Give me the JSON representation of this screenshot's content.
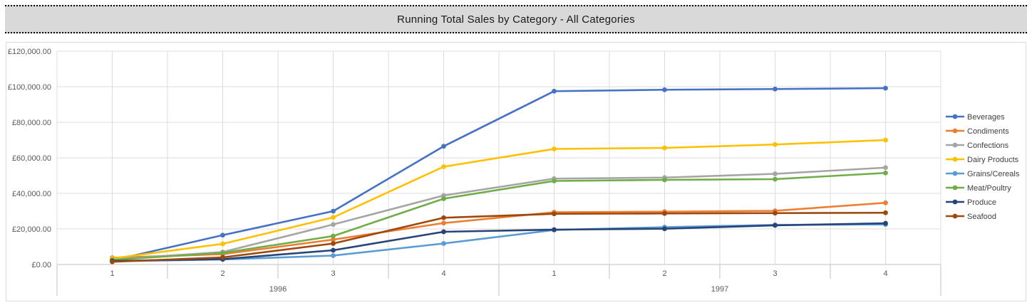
{
  "title_bar": {
    "title": "Running Total Sales by Category - All Categories"
  },
  "chart_data": {
    "type": "line",
    "title": "Running Total Sales by Category - All Categories",
    "currency": "GBP",
    "x_axis": {
      "quarter_labels": [
        "1",
        "2",
        "3",
        "4",
        "1",
        "2",
        "3",
        "4"
      ],
      "year_groups": [
        {
          "label": "1996",
          "quarters": 4
        },
        {
          "label": "1997",
          "quarters": 4
        }
      ]
    },
    "y_axis": {
      "min": 0,
      "max": 120000,
      "step": 20000,
      "tick_labels": [
        "£0.00",
        "£20,000.00",
        "£40,000.00",
        "£60,000.00",
        "£80,000.00",
        "£100,000.00",
        "£120,000.00"
      ]
    },
    "grid": true,
    "legend_position": "right",
    "marker": "circle",
    "series": [
      {
        "name": "Beverages",
        "color": "#4472C4",
        "values": [
          2300,
          16500,
          30000,
          66500,
          97500,
          98300,
          98700,
          99200
        ]
      },
      {
        "name": "Condiments",
        "color": "#ED7D31",
        "values": [
          3800,
          5800,
          14000,
          23300,
          29400,
          29700,
          30200,
          34700
        ]
      },
      {
        "name": "Confections",
        "color": "#A5A5A5",
        "values": [
          2900,
          7000,
          22500,
          38800,
          48300,
          48900,
          51000,
          54500
        ]
      },
      {
        "name": "Dairy Products",
        "color": "#FFC000",
        "values": [
          3400,
          11600,
          26500,
          55000,
          65000,
          65600,
          67500,
          70000
        ]
      },
      {
        "name": "Grains/Cereals",
        "color": "#5B9BD5",
        "values": [
          1800,
          2800,
          5000,
          11800,
          19400,
          21000,
          22300,
          22500
        ]
      },
      {
        "name": "Meat/Poultry",
        "color": "#70AD47",
        "values": [
          2600,
          6500,
          16000,
          37000,
          47000,
          47600,
          48000,
          51500
        ]
      },
      {
        "name": "Produce",
        "color": "#264478",
        "values": [
          2000,
          3000,
          8000,
          18400,
          19600,
          20100,
          22000,
          23200
        ]
      },
      {
        "name": "Seafood",
        "color": "#9E480E",
        "values": [
          1500,
          4000,
          11800,
          26300,
          28500,
          28700,
          28900,
          29100
        ]
      }
    ]
  },
  "ui_colors": {
    "title_band_bg": "#d9d9d9",
    "gridline": "#dcdcdc",
    "axis_line": "#c0c0c0",
    "axis_text": "#595959",
    "legend_text": "#404040",
    "chart_bg": "#ffffff"
  }
}
